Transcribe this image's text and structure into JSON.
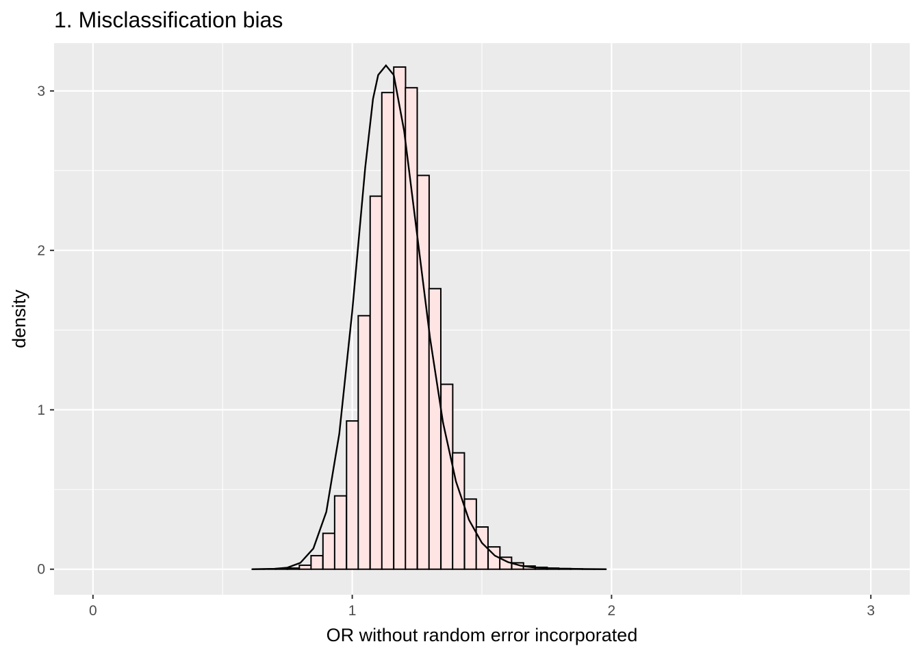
{
  "chart_data": {
    "type": "histogram",
    "title": "1. Misclassification bias",
    "xlabel": "OR without random error incorporated",
    "ylabel": "density",
    "xlim": [
      -0.15,
      3.15
    ],
    "ylim": [
      -0.16,
      3.3
    ],
    "x_ticks": [
      0,
      1,
      2,
      3
    ],
    "x_tick_labels": [
      "0",
      "1",
      "2",
      "3"
    ],
    "y_ticks": [
      0,
      1,
      2,
      3
    ],
    "y_tick_labels": [
      "0",
      "1",
      "2",
      "3"
    ],
    "grid": true,
    "legend": "none",
    "colors": {
      "panel_background": "#ebebeb",
      "grid": "#ffffff",
      "bar_fill": "#ffe4e4",
      "bar_outline": "#000000",
      "density_line": "#000000"
    },
    "histogram": {
      "bin_width": 0.0455,
      "bins": [
        {
          "x0": 0.614,
          "density": 0.0
        },
        {
          "x0": 0.659,
          "density": 0.0
        },
        {
          "x0": 0.705,
          "density": 0.002
        },
        {
          "x0": 0.75,
          "density": 0.007
        },
        {
          "x0": 0.796,
          "density": 0.025
        },
        {
          "x0": 0.841,
          "density": 0.085
        },
        {
          "x0": 0.887,
          "density": 0.225
        },
        {
          "x0": 0.932,
          "density": 0.46
        },
        {
          "x0": 0.978,
          "density": 0.93
        },
        {
          "x0": 1.023,
          "density": 1.59
        },
        {
          "x0": 1.069,
          "density": 2.34
        },
        {
          "x0": 1.114,
          "density": 2.99
        },
        {
          "x0": 1.16,
          "density": 3.15
        },
        {
          "x0": 1.205,
          "density": 3.02
        },
        {
          "x0": 1.251,
          "density": 2.47
        },
        {
          "x0": 1.296,
          "density": 1.76
        },
        {
          "x0": 1.342,
          "density": 1.16
        },
        {
          "x0": 1.387,
          "density": 0.73
        },
        {
          "x0": 1.433,
          "density": 0.44
        },
        {
          "x0": 1.478,
          "density": 0.265
        },
        {
          "x0": 1.524,
          "density": 0.14
        },
        {
          "x0": 1.569,
          "density": 0.075
        },
        {
          "x0": 1.615,
          "density": 0.04
        },
        {
          "x0": 1.66,
          "density": 0.02
        },
        {
          "x0": 1.706,
          "density": 0.012
        },
        {
          "x0": 1.751,
          "density": 0.007
        },
        {
          "x0": 1.797,
          "density": 0.004
        },
        {
          "x0": 1.842,
          "density": 0.002
        },
        {
          "x0": 1.888,
          "density": 0.001
        },
        {
          "x0": 1.933,
          "density": 0.0
        }
      ]
    },
    "density_curve": {
      "x": [
        0.614,
        0.7,
        0.75,
        0.8,
        0.85,
        0.9,
        0.95,
        1.0,
        1.05,
        1.08,
        1.1,
        1.13,
        1.16,
        1.2,
        1.25,
        1.3,
        1.35,
        1.4,
        1.45,
        1.5,
        1.55,
        1.6,
        1.65,
        1.7,
        1.8,
        1.9,
        1.979
      ],
      "y": [
        0.0,
        0.003,
        0.01,
        0.04,
        0.13,
        0.36,
        0.85,
        1.62,
        2.52,
        2.95,
        3.1,
        3.16,
        3.1,
        2.75,
        2.1,
        1.45,
        0.92,
        0.55,
        0.31,
        0.165,
        0.085,
        0.045,
        0.022,
        0.011,
        0.004,
        0.001,
        0.0
      ]
    }
  }
}
